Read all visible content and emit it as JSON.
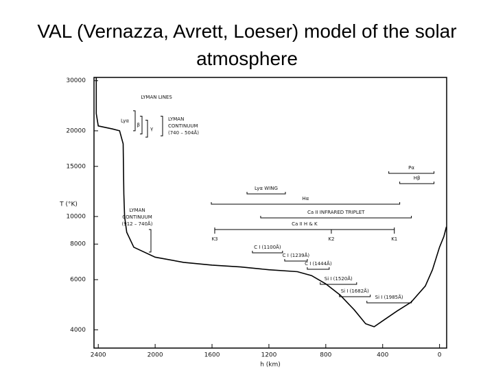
{
  "chart_data": {
    "type": "line",
    "title": "VAL (Vernazza, Avrett, Loeser) model of the solar atmosphere",
    "x_label": "h (km)",
    "y_label": "T (°K)",
    "xlim": [
      2430,
      -50
    ],
    "ylim": [
      3450,
      30800
    ],
    "log_y": true,
    "xticks": [
      2400,
      2000,
      1600,
      1200,
      800,
      400,
      0
    ],
    "yticks": [
      4000,
      6000,
      8000,
      10000,
      15000,
      20000,
      30000
    ],
    "color": "#000000",
    "x": [
      2414,
      2414,
      2400,
      2300,
      2250,
      2225,
      2220,
      2215,
      2200,
      2150,
      2000,
      1800,
      1600,
      1400,
      1200,
      1000,
      900,
      800,
      700,
      600,
      520,
      460,
      400,
      300,
      200,
      100,
      50,
      0,
      -30,
      -48
    ],
    "values": [
      30800,
      23000,
      20800,
      20300,
      20000,
      18000,
      12000,
      10000,
      8800,
      7800,
      7200,
      6900,
      6750,
      6650,
      6500,
      6400,
      6200,
      5800,
      5300,
      4700,
      4200,
      4100,
      4300,
      4650,
      5000,
      5700,
      6500,
      7800,
      8500,
      9200
    ],
    "note": "LYMAN LINES",
    "annotations": [
      {
        "label": "Pα",
        "x": [
          357,
          39
        ]
      },
      {
        "label": "Hβ",
        "x": [
          280,
          39
        ]
      },
      {
        "label": "Lyα WING",
        "x": [
          1354,
          1084
        ]
      },
      {
        "label": "Hα",
        "x": [
          1605,
          280
        ]
      },
      {
        "label": "Ca II INFRARED TRIPLET",
        "x": [
          1258,
          198
        ]
      },
      {
        "label": "Ca II H & K",
        "x": [
          1581,
          318
        ]
      },
      {
        "label": "C I (1100Å)",
        "x": [
          1316,
          1104
        ]
      },
      {
        "label": "C I (1239Å)",
        "x": [
          1089,
          930
        ]
      },
      {
        "label": "C I (1444Å)",
        "x": [
          930,
          776
        ]
      },
      {
        "label": "Si I (1520Å)",
        "x": [
          839,
          583
        ]
      },
      {
        "label": "Si I (1682Å)",
        "x": [
          704,
          487
        ]
      },
      {
        "label": "Si I (1985Å)",
        "x": [
          511,
          198
        ]
      }
    ],
    "markers": [
      {
        "label": "K3",
        "x": 1581
      },
      {
        "label": "K2",
        "x": 761
      },
      {
        "label": "K1",
        "x": 318
      }
    ],
    "brackets": [
      {
        "label": [
          "Lyα"
        ],
        "y": [
          23500,
          20000
        ]
      },
      {
        "label": [
          "β"
        ],
        "y": [
          22500,
          19500
        ]
      },
      {
        "label": [
          "γ"
        ],
        "y": [
          21800,
          19000
        ]
      },
      {
        "label": [
          "LYMAN",
          "CONTINUUM",
          "(740 – 504Å)"
        ],
        "y": [
          22500,
          19200
        ]
      },
      {
        "label": [
          "LYMAN",
          "CONTINUUM",
          "(912 – 740Å)"
        ],
        "y": [
          9000,
          7500
        ]
      }
    ]
  }
}
